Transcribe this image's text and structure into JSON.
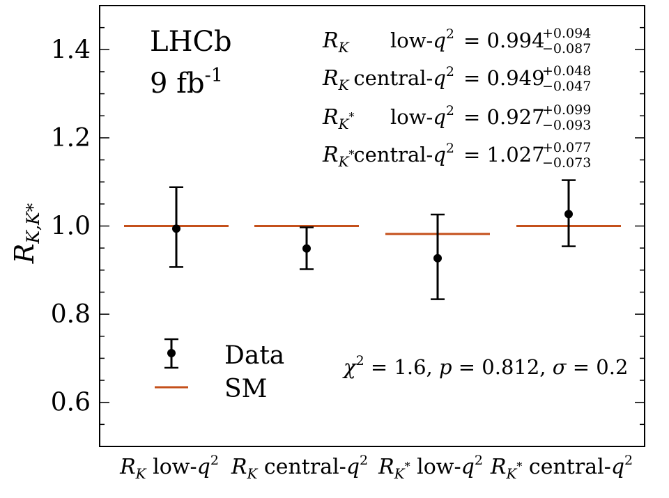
{
  "chart_data": {
    "type": "scatter",
    "ylabel": "R",
    "ylabel_sub": "K,K*",
    "ylim": [
      0.5,
      1.5
    ],
    "yticks": [
      0.6,
      0.8,
      1.0,
      1.2,
      1.4
    ],
    "ytick_labels": [
      "0.6",
      "0.8",
      "1.0",
      "1.2",
      "1.4"
    ],
    "categories": [
      {
        "main": "R",
        "sub": "K",
        "sub_star": false,
        "label": "low-",
        "q": "q",
        "exp": "2"
      },
      {
        "main": "R",
        "sub": "K",
        "sub_star": false,
        "label": "central-",
        "q": "q",
        "exp": "2"
      },
      {
        "main": "R",
        "sub": "K",
        "sub_star": true,
        "label": "low-",
        "q": "q",
        "exp": "2"
      },
      {
        "main": "R",
        "sub": "K",
        "sub_star": true,
        "label": "central-",
        "q": "q",
        "exp": "2"
      }
    ],
    "series": [
      {
        "name": "Data",
        "values": [
          0.994,
          0.949,
          0.927,
          1.027
        ],
        "err_plus": [
          0.094,
          0.048,
          0.099,
          0.077
        ],
        "err_minus": [
          0.087,
          0.047,
          0.093,
          0.073
        ],
        "color": "#000000"
      },
      {
        "name": "SM",
        "values": [
          1.0,
          1.0,
          0.982,
          1.0
        ],
        "color": "#c4501b"
      }
    ],
    "experiment": "LHCb",
    "luminosity": "9 fb",
    "luminosity_exp": "-1",
    "results": [
      {
        "sym": "R",
        "sub": "K",
        "star": false,
        "region": "low-",
        "q": "q",
        "exp": "2",
        "value": "0.994",
        "plus": "+0.094",
        "minus": "−0.087"
      },
      {
        "sym": "R",
        "sub": "K",
        "star": false,
        "region": "central-",
        "q": "q",
        "exp": "2",
        "value": "0.949",
        "plus": "+0.048",
        "minus": "−0.047"
      },
      {
        "sym": "R",
        "sub": "K",
        "star": true,
        "region": "low-",
        "q": "q",
        "exp": "2",
        "value": "0.927",
        "plus": "+0.099",
        "minus": "−0.093"
      },
      {
        "sym": "R",
        "sub": "K",
        "star": true,
        "region": "central-",
        "q": "q",
        "exp": "2",
        "value": "1.027",
        "plus": "+0.077",
        "minus": "−0.073"
      }
    ],
    "stats": {
      "chi": "χ",
      "chi_exp": "2",
      "chi_val": " = 1.6, ",
      "p": "p",
      "p_val": " = 0.812, ",
      "sigma": "σ",
      "sigma_val": " = 0.2"
    },
    "legend": {
      "data_label": "Data",
      "sm_label": "SM",
      "position": "bottom-left"
    }
  }
}
